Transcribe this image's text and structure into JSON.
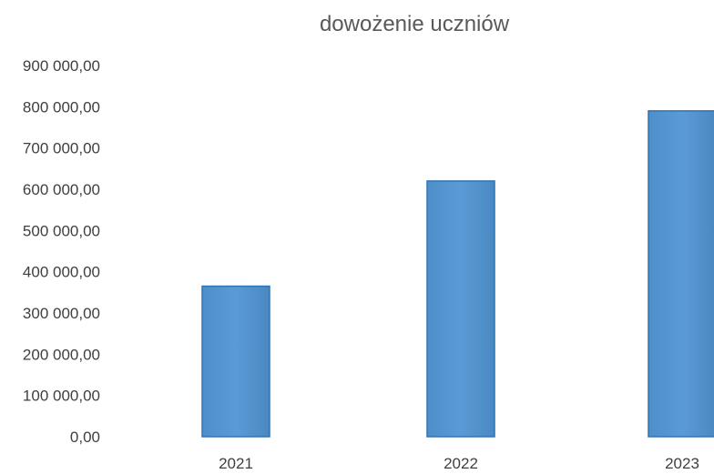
{
  "chart_data": {
    "type": "bar",
    "title": "dowożenie uczniów",
    "xlabel": "",
    "ylabel": "",
    "categories": [
      "2021",
      "2022",
      "2023"
    ],
    "values": [
      365000,
      620000,
      790000
    ],
    "ylim": [
      0,
      900000
    ],
    "y_ticks": [
      0,
      100000,
      200000,
      300000,
      400000,
      500000,
      600000,
      700000,
      800000,
      900000
    ],
    "y_tick_labels": [
      "0,00",
      "100 000,00",
      "200 000,00",
      "300 000,00",
      "400 000,00",
      "500 000,00",
      "600 000,00",
      "700 000,00",
      "800 000,00",
      "900 000,00"
    ],
    "grid": false,
    "legend": "none",
    "bar_color": "#5b9bd5",
    "bar_edge_color": "#2e75b6"
  }
}
